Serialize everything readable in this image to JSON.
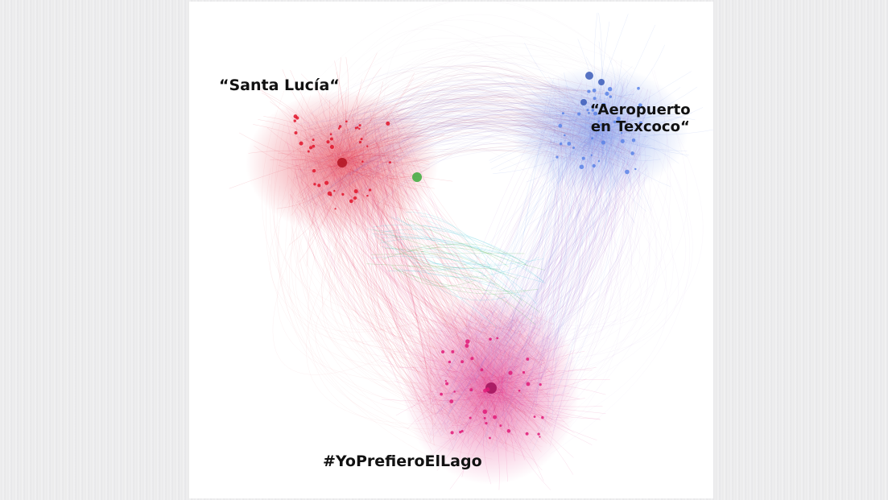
{
  "labels": {
    "santa_lucia": "“Santa Lucía“",
    "texcoco_line1": "“Aeropuerto",
    "texcoco_line2": "en Texcoco“",
    "hashtag": "#YoPrefieroElLago"
  },
  "colors": {
    "red_cluster": "#e0142a",
    "blue_cluster": "#5a82e6",
    "pink_cluster": "#e01a78",
    "purple_edges": "#a050c8",
    "cyan_accent": "#3cc8d8",
    "green_accent": "#3caa3c",
    "label_text": "#111111"
  }
}
